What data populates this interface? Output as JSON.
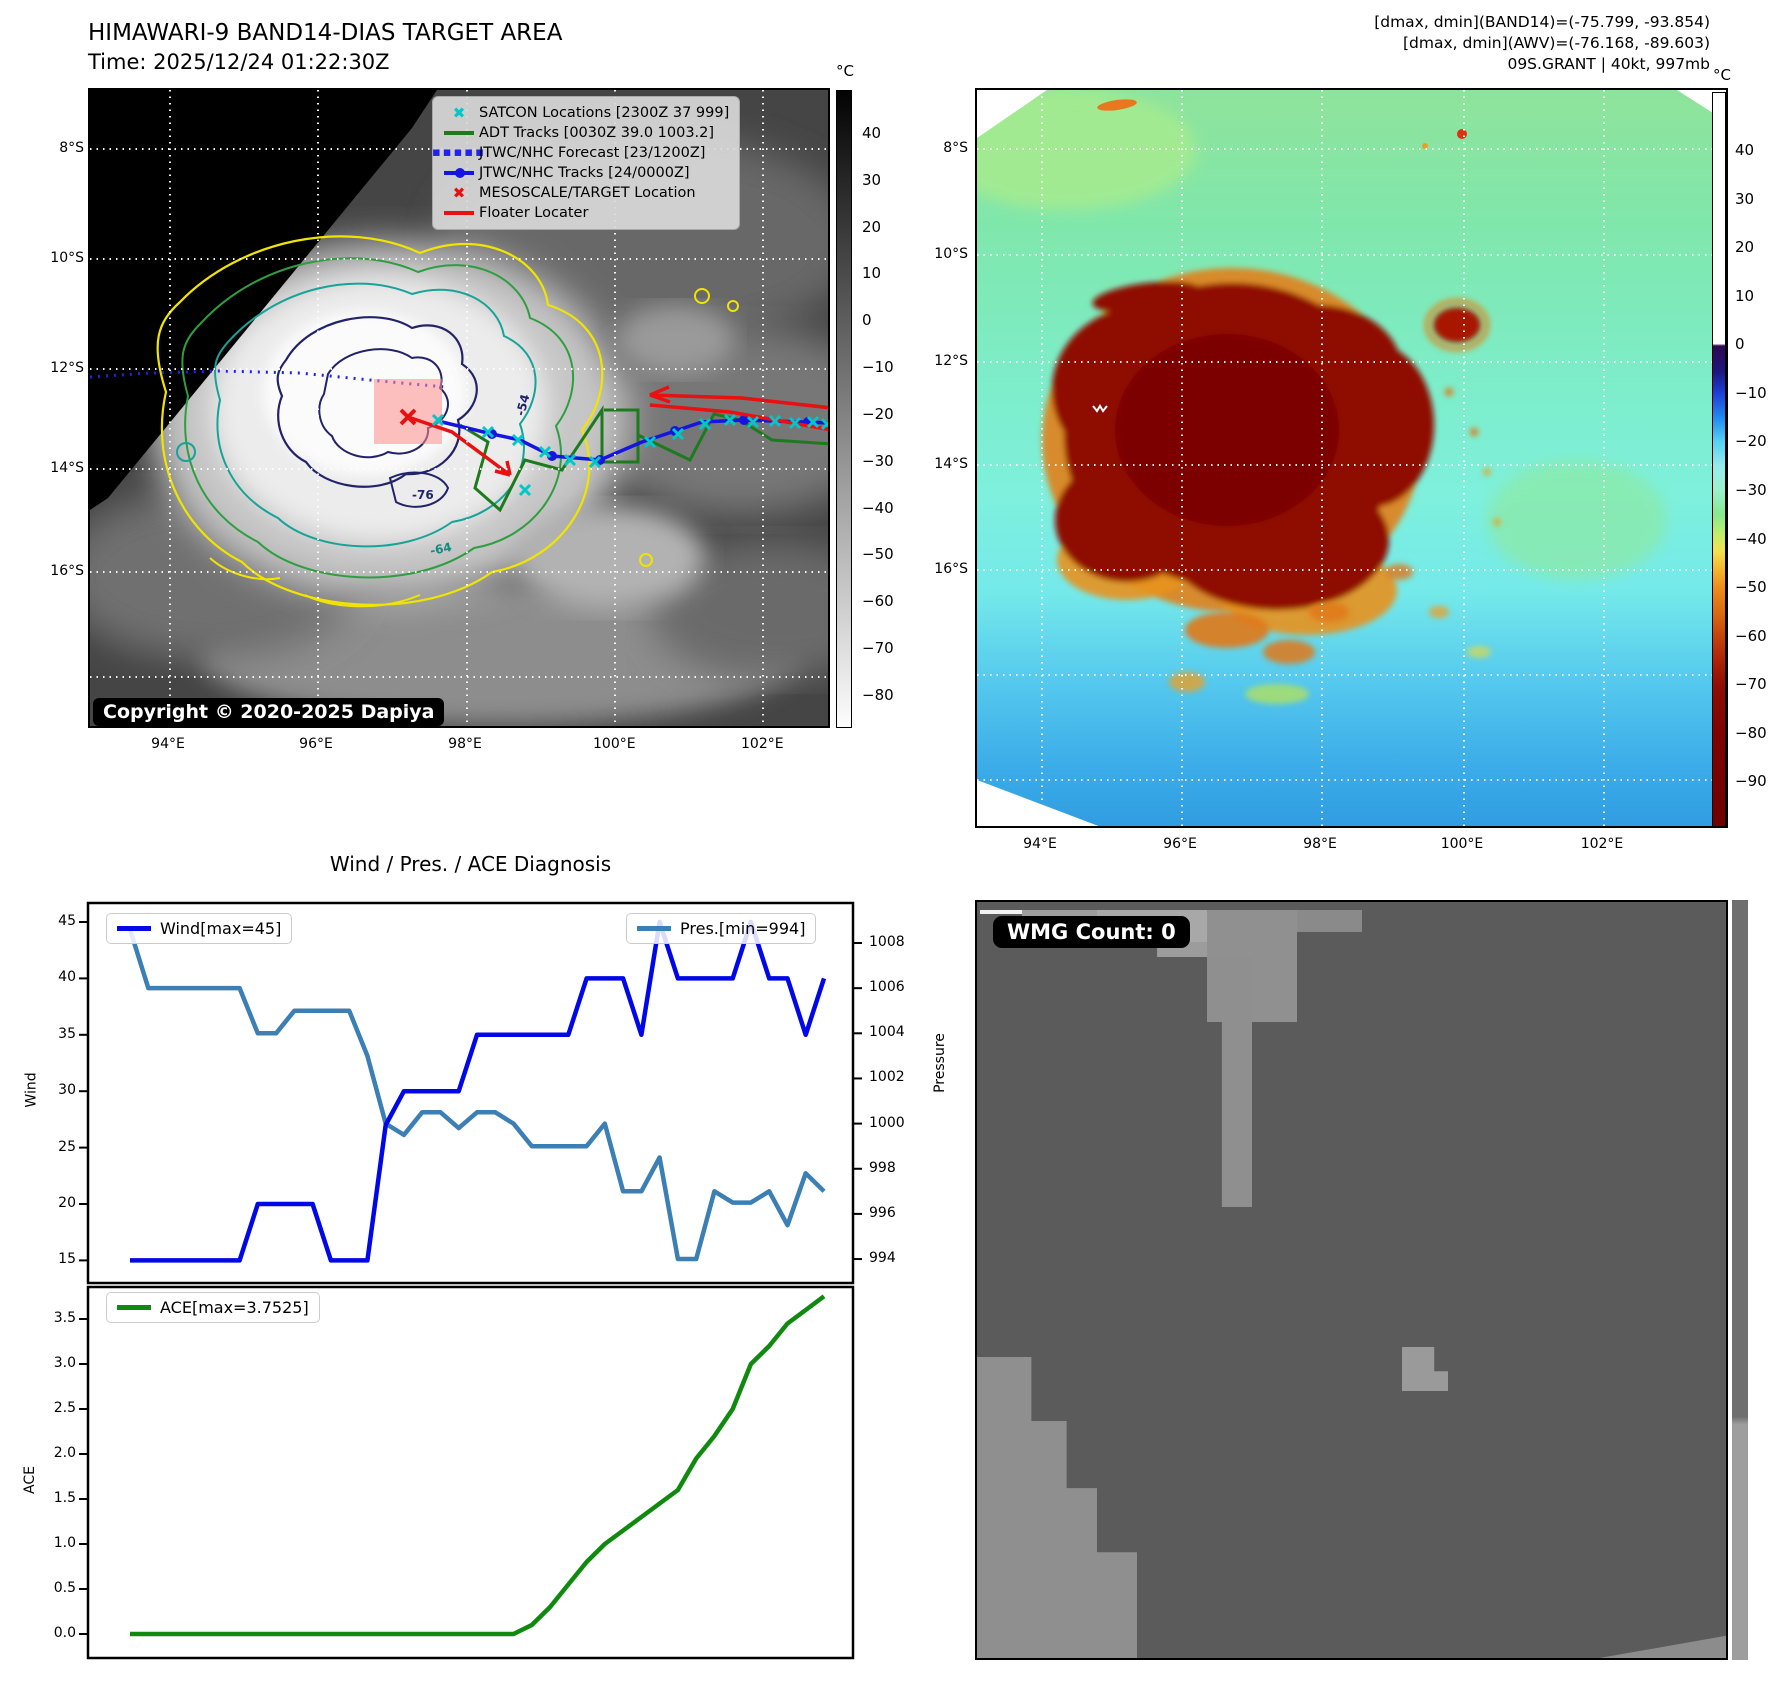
{
  "header": {
    "title": "HIMAWARI-9 BAND14-DIAS TARGET AREA",
    "time_line": "Time: 2025/12/24 01:22:30Z",
    "right_line1": "[dmax, dmin](BAND14)=(-75.799, -93.854)",
    "right_line2": "[dmax, dmin](AWV)=(-76.168, -89.603)",
    "right_line3": "09S.GRANT | 40kt, 997mb"
  },
  "left_map": {
    "legend": [
      {
        "marker": "x-cyan",
        "color": "#00c8c8",
        "label": "SATCON Locations [2300Z 37 999]"
      },
      {
        "marker": "line-green",
        "color": "#1e7a1e",
        "label": "ADT Tracks [0030Z 39.0 1003.2]"
      },
      {
        "marker": "dotted-blue",
        "color": "#2222ee",
        "label": "JTWC/NHC Forecast [23/1200Z]"
      },
      {
        "marker": "line-dot-blue",
        "color": "#1515e0",
        "label": "JTWC/NHC Tracks [24/0000Z]"
      },
      {
        "marker": "x-red",
        "color": "#e81010",
        "label": "MESOSCALE/TARGET Location"
      },
      {
        "marker": "line-red",
        "color": "#e81010",
        "label": "Floater Locater"
      }
    ],
    "copyright": "Copyright © 2020-2025 Dapiya",
    "lat_labels": [
      "8°S",
      "10°S",
      "12°S",
      "14°S",
      "16°S"
    ],
    "lon_labels": [
      "94°E",
      "96°E",
      "98°E",
      "100°E",
      "102°E"
    ],
    "contour_labels": {
      "a": "-54",
      "b": "-76",
      "c": "-64"
    },
    "colorbar": {
      "unit": "°C",
      "ticks": [
        "40",
        "30",
        "20",
        "10",
        "0",
        "−10",
        "−20",
        "−30",
        "−40",
        "−50",
        "−60",
        "−70",
        "−80"
      ]
    }
  },
  "right_map": {
    "lat_labels": [
      "8°S",
      "10°S",
      "12°S",
      "14°S",
      "16°S"
    ],
    "lon_labels": [
      "94°E",
      "96°E",
      "98°E",
      "100°E",
      "102°E"
    ],
    "colorbar": {
      "unit": "°C",
      "ticks": [
        "40",
        "30",
        "20",
        "10",
        "0",
        "−10",
        "−20",
        "−30",
        "−40",
        "−50",
        "−60",
        "−70",
        "−80",
        "−90"
      ]
    }
  },
  "charts": {
    "title": "Wind / Pres. / ACE Diagnosis",
    "ylabel_wind": "Wind",
    "ylabel_pressure": "Pressure",
    "ylabel_ace": "ACE",
    "legend_wind": "Wind[max=45]",
    "legend_pres": "Pres.[min=994]",
    "legend_ace": "ACE[max=3.7525]",
    "wind_yticks": [
      "45",
      "40",
      "35",
      "30",
      "25",
      "20",
      "15"
    ],
    "pres_yticks": [
      "1008",
      "1006",
      "1004",
      "1002",
      "1000",
      "998",
      "996",
      "994"
    ],
    "ace_yticks": [
      "3.5",
      "3.0",
      "2.5",
      "2.0",
      "1.5",
      "1.0",
      "0.5",
      "0.0"
    ]
  },
  "wmg": {
    "badge": "WMG Count: 0"
  },
  "colors": {
    "wind_line": "#0008e8",
    "pres_line": "#3b7fb4",
    "ace_line": "#0f8a0f",
    "satcon": "#00c8c8",
    "adt": "#1e7a1e",
    "jtwc": "#1515e0",
    "floater": "#e81010",
    "target_box": "rgba(255,140,140,0.55)"
  },
  "chart_data": [
    {
      "type": "line",
      "title": "Wind / Pres. / ACE Diagnosis",
      "x": "time steps 0-38 (unlabeled axis)",
      "series": [
        {
          "name": "Wind[max=45]",
          "axis": "left",
          "ylabel": "Wind",
          "ylim": [
            13.3,
            46.8
          ],
          "values": [
            15,
            15,
            15,
            15,
            15,
            15,
            15,
            20,
            20,
            20,
            20,
            15,
            15,
            15,
            27,
            30,
            30,
            30,
            30,
            35,
            35,
            35,
            35,
            35,
            35,
            40,
            40,
            40,
            35,
            45,
            40,
            40,
            40,
            40,
            45,
            40,
            40,
            35,
            40
          ]
        },
        {
          "name": "Pres.[min=994]",
          "axis": "right",
          "ylabel": "Pressure",
          "ylim": [
            992.5,
            1009.7
          ],
          "values": [
            1008.6,
            1006,
            1006,
            1006,
            1006,
            1006,
            1006,
            1004,
            1004,
            1005,
            1005,
            1005,
            1005,
            1003,
            1000,
            999.5,
            1000.5,
            1000.5,
            999.8,
            1000.5,
            1000.5,
            1000,
            999,
            999,
            999,
            999,
            1000,
            997,
            997,
            998.5,
            994,
            994,
            997,
            996.5,
            996.5,
            997,
            995.5,
            997.8,
            997
          ]
        }
      ],
      "legend_position": "upper-left and upper-right"
    },
    {
      "type": "line",
      "title": "ACE",
      "x": "time steps 0-38 (unlabeled axis)",
      "series": [
        {
          "name": "ACE[max=3.7525]",
          "axis": "left",
          "ylabel": "ACE",
          "ylim": [
            -0.17,
            3.92
          ],
          "values": [
            0,
            0,
            0,
            0,
            0,
            0,
            0,
            0,
            0,
            0,
            0,
            0,
            0,
            0,
            0,
            0,
            0,
            0,
            0,
            0,
            0,
            0,
            0.1,
            0.3,
            0.55,
            0.8,
            1.0,
            1.15,
            1.3,
            1.45,
            1.6,
            1.95,
            2.2,
            2.5,
            3.0,
            3.2,
            3.45,
            3.6,
            3.7525
          ]
        }
      ],
      "legend_position": "upper-left"
    }
  ]
}
